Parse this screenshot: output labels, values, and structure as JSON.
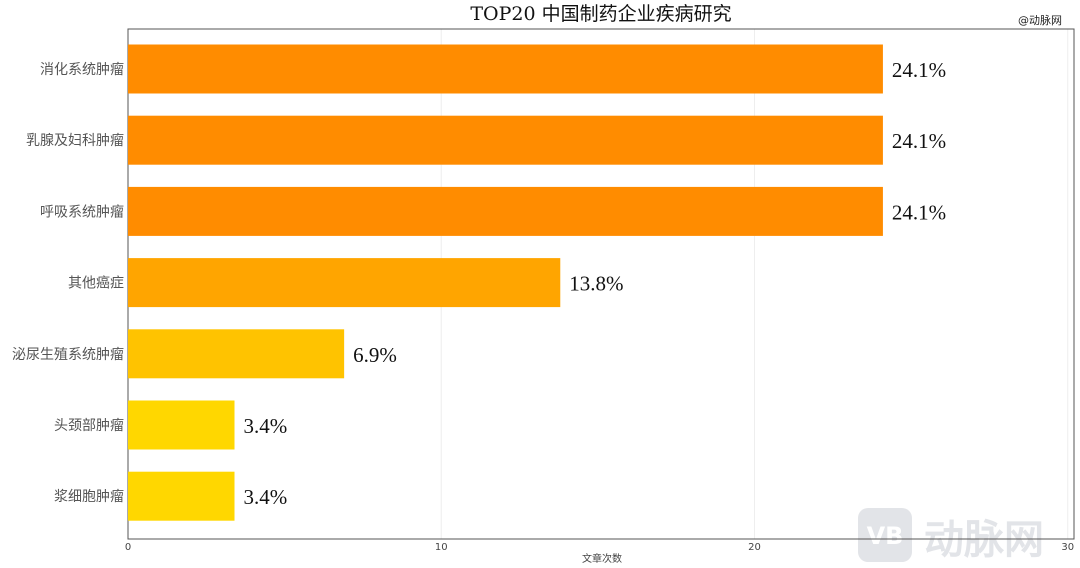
{
  "chart_data": {
    "type": "bar",
    "orientation": "horizontal",
    "title": "TOP20 中国制药企业疾病研究",
    "xlabel": "文章次数",
    "ylabel": "",
    "xlim": [
      0,
      30
    ],
    "xticks": [
      0,
      10,
      20,
      30
    ],
    "grid": true,
    "categories": [
      "消化系统肿瘤",
      "乳腺及妇科肿瘤",
      "呼吸系统肿瘤",
      "其他癌症",
      "泌尿生殖系统肿瘤",
      "头颈部肿瘤",
      "浆细胞肿瘤"
    ],
    "values": [
      24.1,
      24.1,
      24.1,
      13.8,
      6.9,
      3.4,
      3.4
    ],
    "labels": [
      "24.1%",
      "24.1%",
      "24.1%",
      "13.8%",
      "6.9%",
      "3.4%",
      "3.4%"
    ],
    "colors": [
      "#ff8c00",
      "#ff8c00",
      "#ff8c00",
      "#ffa500",
      "#ffc300",
      "#ffd700",
      "#ffd700"
    ]
  },
  "credit": "@动脉网",
  "watermark": {
    "logo": "VB",
    "text": "动脉网"
  }
}
